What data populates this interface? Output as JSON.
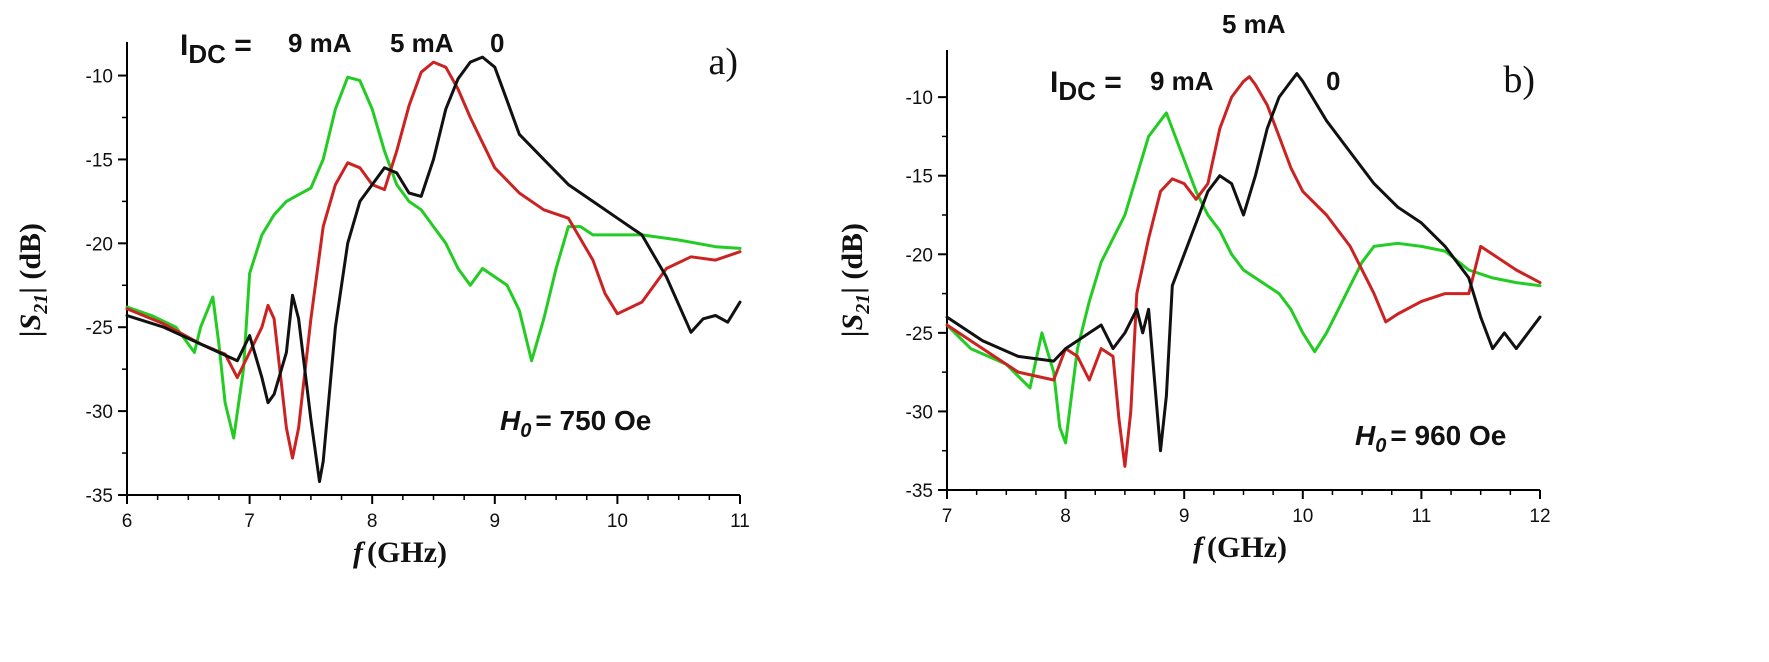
{
  "chart_data": [
    {
      "type": "line",
      "panel_label": "a)",
      "xlabel_var": "f",
      "xlabel_unit": "(GHz)",
      "ylabel_prefix": "|S",
      "ylabel_sub": "21",
      "ylabel_suffix": "| (dB)",
      "xlim": [
        6,
        11
      ],
      "ylim": [
        -35,
        -8
      ],
      "xticks": [
        6,
        7,
        8,
        9,
        10,
        11
      ],
      "yticks": [
        -35,
        -30,
        -25,
        -20,
        -15,
        -10
      ],
      "current_label_prefix": "I",
      "current_label_sub": "DC",
      "current_label_eq": " = ",
      "current_labels": [
        "9 mA",
        "5 mA",
        "0"
      ],
      "field_var": "H",
      "field_sub": "0",
      "field_value": "= 750 Oe",
      "series": [
        {
          "name": "9 mA",
          "color": "#22cc22",
          "x": [
            6.0,
            6.2,
            6.4,
            6.55,
            6.6,
            6.7,
            6.75,
            6.8,
            6.87,
            6.95,
            7.0,
            7.1,
            7.2,
            7.3,
            7.4,
            7.5,
            7.6,
            7.7,
            7.8,
            7.9,
            8.0,
            8.1,
            8.2,
            8.3,
            8.4,
            8.5,
            8.6,
            8.7,
            8.8,
            8.9,
            9.0,
            9.1,
            9.2,
            9.3,
            9.4,
            9.5,
            9.6,
            9.7,
            9.8,
            10.0,
            10.2,
            10.5,
            10.8,
            11.0
          ],
          "y": [
            -23.8,
            -24.3,
            -25.0,
            -26.5,
            -25.0,
            -23.2,
            -26.0,
            -29.5,
            -31.6,
            -27.5,
            -21.8,
            -19.5,
            -18.3,
            -17.5,
            -17.1,
            -16.7,
            -15.0,
            -12.0,
            -10.1,
            -10.3,
            -12.0,
            -14.5,
            -16.5,
            -17.5,
            -18.0,
            -19.0,
            -20.0,
            -21.5,
            -22.5,
            -21.5,
            -22.0,
            -22.5,
            -24.0,
            -27.0,
            -24.5,
            -21.5,
            -19.0,
            -19.0,
            -19.5,
            -19.5,
            -19.5,
            -19.8,
            -20.2,
            -20.3
          ]
        },
        {
          "name": "5 mA",
          "color": "#cc2222",
          "x": [
            6.0,
            6.3,
            6.6,
            6.8,
            6.9,
            7.0,
            7.1,
            7.15,
            7.2,
            7.3,
            7.35,
            7.4,
            7.5,
            7.6,
            7.7,
            7.8,
            7.9,
            8.0,
            8.1,
            8.2,
            8.3,
            8.4,
            8.5,
            8.6,
            8.7,
            8.8,
            8.9,
            9.0,
            9.2,
            9.4,
            9.6,
            9.8,
            9.9,
            10.0,
            10.2,
            10.4,
            10.6,
            10.8,
            11.0
          ],
          "y": [
            -23.9,
            -24.8,
            -26.0,
            -26.6,
            -28.0,
            -26.5,
            -25.0,
            -23.7,
            -24.5,
            -31.0,
            -32.8,
            -31.0,
            -24.5,
            -19.0,
            -16.5,
            -15.2,
            -15.5,
            -16.5,
            -16.8,
            -14.5,
            -11.8,
            -9.8,
            -9.2,
            -9.5,
            -10.8,
            -12.5,
            -14.0,
            -15.5,
            -17.0,
            -18.0,
            -18.5,
            -21.0,
            -23.0,
            -24.2,
            -23.5,
            -21.5,
            -20.8,
            -21.0,
            -20.5
          ]
        },
        {
          "name": "0",
          "color": "#111111",
          "x": [
            6.0,
            6.3,
            6.6,
            6.9,
            7.0,
            7.1,
            7.15,
            7.2,
            7.3,
            7.35,
            7.4,
            7.5,
            7.57,
            7.6,
            7.7,
            7.8,
            7.9,
            8.0,
            8.1,
            8.2,
            8.3,
            8.4,
            8.5,
            8.6,
            8.7,
            8.8,
            8.9,
            9.0,
            9.1,
            9.2,
            9.4,
            9.6,
            9.8,
            10.0,
            10.2,
            10.4,
            10.6,
            10.7,
            10.8,
            10.9,
            11.0
          ],
          "y": [
            -24.3,
            -25.0,
            -26.0,
            -27.0,
            -25.5,
            -28.0,
            -29.5,
            -29.0,
            -26.5,
            -23.1,
            -24.5,
            -30.5,
            -34.2,
            -33.0,
            -25.0,
            -20.0,
            -17.5,
            -16.5,
            -15.5,
            -15.8,
            -17.0,
            -17.2,
            -15.0,
            -12.0,
            -10.2,
            -9.2,
            -8.9,
            -9.5,
            -11.5,
            -13.5,
            -15.0,
            -16.5,
            -17.5,
            -18.5,
            -19.5,
            -22.0,
            -25.3,
            -24.5,
            -24.3,
            -24.7,
            -23.5
          ]
        }
      ]
    },
    {
      "type": "line",
      "panel_label": "b)",
      "xlabel_var": "f",
      "xlabel_unit": "(GHz)",
      "ylabel_prefix": "|S",
      "ylabel_sub": "21",
      "ylabel_suffix": "| (dB)",
      "xlim": [
        7,
        12
      ],
      "ylim": [
        -35,
        -7
      ],
      "xticks": [
        7,
        8,
        9,
        10,
        11,
        12
      ],
      "yticks": [
        -35,
        -30,
        -25,
        -20,
        -15,
        -10
      ],
      "top_label": "5 mA",
      "current_label_prefix": "I",
      "current_label_sub": "DC",
      "current_label_eq": " = ",
      "current_labels": [
        "9 mA",
        "0"
      ],
      "field_var": "H",
      "field_sub": "0",
      "field_value": "= 960 Oe",
      "series": [
        {
          "name": "9 mA",
          "color": "#22cc22",
          "x": [
            7.0,
            7.2,
            7.5,
            7.7,
            7.8,
            7.9,
            7.95,
            8.0,
            8.05,
            8.1,
            8.2,
            8.3,
            8.4,
            8.5,
            8.6,
            8.7,
            8.8,
            8.85,
            8.9,
            9.0,
            9.1,
            9.2,
            9.3,
            9.4,
            9.5,
            9.6,
            9.7,
            9.8,
            9.9,
            10.0,
            10.1,
            10.2,
            10.3,
            10.4,
            10.5,
            10.6,
            10.8,
            11.0,
            11.2,
            11.4,
            11.6,
            11.8,
            12.0
          ],
          "y": [
            -24.5,
            -26.0,
            -27.0,
            -28.5,
            -25.0,
            -27.5,
            -31.0,
            -32.0,
            -29.0,
            -26.0,
            -23.0,
            -20.5,
            -19.0,
            -17.5,
            -15.0,
            -12.5,
            -11.5,
            -11.0,
            -12.0,
            -14.0,
            -16.0,
            -17.5,
            -18.5,
            -20.0,
            -21.0,
            -21.5,
            -22.0,
            -22.5,
            -23.5,
            -25.0,
            -26.2,
            -25.0,
            -23.5,
            -22.0,
            -20.5,
            -19.5,
            -19.3,
            -19.5,
            -19.8,
            -21.0,
            -21.5,
            -21.8,
            -22.0
          ]
        },
        {
          "name": "5 mA",
          "color": "#cc2222",
          "x": [
            7.0,
            7.3,
            7.6,
            7.9,
            8.0,
            8.1,
            8.2,
            8.3,
            8.4,
            8.45,
            8.5,
            8.55,
            8.6,
            8.7,
            8.8,
            8.9,
            9.0,
            9.1,
            9.2,
            9.3,
            9.4,
            9.5,
            9.55,
            9.6,
            9.7,
            9.8,
            9.9,
            10.0,
            10.2,
            10.4,
            10.6,
            10.7,
            10.8,
            11.0,
            11.2,
            11.4,
            11.5,
            11.6,
            11.8,
            12.0
          ],
          "y": [
            -24.5,
            -26.0,
            -27.5,
            -28.0,
            -26.0,
            -26.5,
            -28.0,
            -26.0,
            -26.5,
            -30.5,
            -33.5,
            -30.0,
            -22.5,
            -19.0,
            -16.0,
            -15.2,
            -15.5,
            -16.5,
            -15.5,
            -12.0,
            -10.0,
            -9.0,
            -8.7,
            -9.2,
            -10.5,
            -12.5,
            -14.5,
            -16.0,
            -17.5,
            -19.5,
            -22.5,
            -24.3,
            -23.8,
            -23.0,
            -22.5,
            -22.5,
            -19.5,
            -20.0,
            -21.0,
            -21.8
          ]
        },
        {
          "name": "0",
          "color": "#111111",
          "x": [
            7.0,
            7.3,
            7.6,
            7.9,
            8.0,
            8.1,
            8.2,
            8.3,
            8.4,
            8.5,
            8.6,
            8.65,
            8.7,
            8.75,
            8.8,
            8.85,
            8.9,
            9.0,
            9.1,
            9.2,
            9.3,
            9.4,
            9.5,
            9.6,
            9.7,
            9.8,
            9.9,
            9.95,
            10.0,
            10.2,
            10.4,
            10.6,
            10.8,
            11.0,
            11.2,
            11.4,
            11.5,
            11.6,
            11.7,
            11.8,
            11.9,
            12.0
          ],
          "y": [
            -24.0,
            -25.5,
            -26.5,
            -26.8,
            -26.0,
            -25.5,
            -25.0,
            -24.5,
            -26.0,
            -25.0,
            -23.5,
            -25.0,
            -23.5,
            -28.0,
            -32.5,
            -29.0,
            -22.0,
            -20.0,
            -18.0,
            -16.0,
            -15.0,
            -15.5,
            -17.5,
            -15.0,
            -12.0,
            -10.0,
            -9.0,
            -8.5,
            -9.0,
            -11.5,
            -13.5,
            -15.5,
            -17.0,
            -18.0,
            -19.5,
            -21.5,
            -24.0,
            -26.0,
            -25.0,
            -26.0,
            -25.0,
            -24.0
          ]
        }
      ]
    }
  ]
}
